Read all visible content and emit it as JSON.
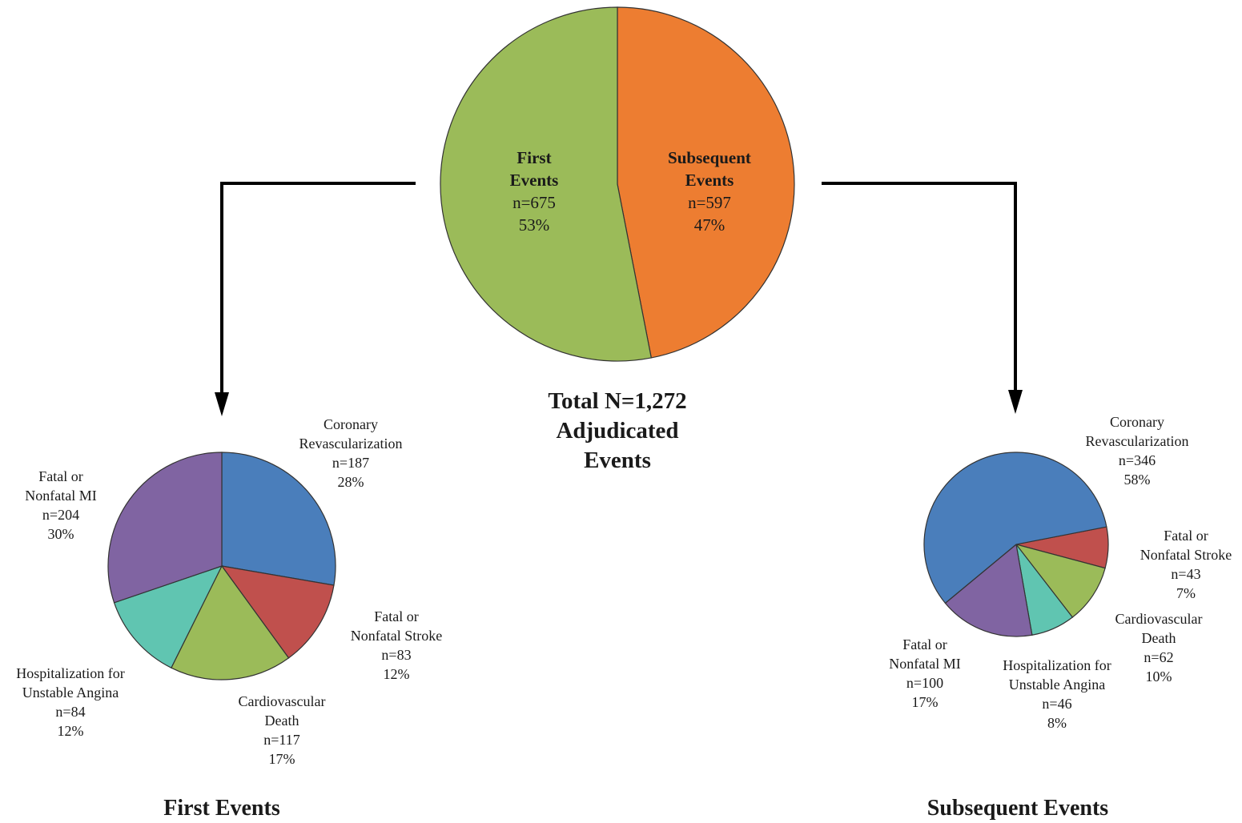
{
  "colors": {
    "first_events": "#9bbb59",
    "subsequent_events": "#ed7d31",
    "coronary_revascularization": "#4a7ebb",
    "fatal_or_nonfatal_stroke": "#c0504d",
    "cardiovascular_death": "#9bbb59",
    "hospitalization_unstable_angina": "#60c5b1",
    "fatal_or_nonfatal_mi": "#8064a2",
    "arrow": "#000000"
  },
  "total_label": {
    "line1": "Total N=1,272",
    "line2": "Adjudicated",
    "line3": "Events"
  },
  "chart_data": [
    {
      "type": "pie",
      "name": "total",
      "title": "",
      "slices": [
        {
          "label_lines": [
            "Subsequent",
            "Events"
          ],
          "n": "n=597",
          "pct": "47%",
          "value": 597,
          "color_key": "subsequent_events"
        },
        {
          "label_lines": [
            "First",
            "Events"
          ],
          "n": "n=675",
          "pct": "53%",
          "value": 675,
          "color_key": "first_events"
        }
      ]
    },
    {
      "type": "pie",
      "name": "first",
      "title": "First Events",
      "slices": [
        {
          "label_lines": [
            "Coronary",
            "Revascularization"
          ],
          "n": "n=187",
          "pct": "28%",
          "value": 187,
          "color_key": "coronary_revascularization"
        },
        {
          "label_lines": [
            "Fatal or",
            "Nonfatal Stroke"
          ],
          "n": "n=83",
          "pct": "12%",
          "value": 83,
          "color_key": "fatal_or_nonfatal_stroke"
        },
        {
          "label_lines": [
            "Cardiovascular",
            "Death"
          ],
          "n": "n=117",
          "pct": "17%",
          "value": 117,
          "color_key": "cardiovascular_death"
        },
        {
          "label_lines": [
            "Hospitalization for",
            "Unstable Angina"
          ],
          "n": "n=84",
          "pct": "12%",
          "value": 84,
          "color_key": "hospitalization_unstable_angina"
        },
        {
          "label_lines": [
            "Fatal or",
            "Nonfatal MI"
          ],
          "n": "n=204",
          "pct": "30%",
          "value": 204,
          "color_key": "fatal_or_nonfatal_mi"
        }
      ]
    },
    {
      "type": "pie",
      "name": "subsequent",
      "title": "Subsequent Events",
      "slices": [
        {
          "label_lines": [
            "Fatal or",
            "Nonfatal Stroke"
          ],
          "n": "n=43",
          "pct": "7%",
          "value": 43,
          "color_key": "fatal_or_nonfatal_stroke"
        },
        {
          "label_lines": [
            "Cardiovascular",
            "Death"
          ],
          "n": "n=62",
          "pct": "10%",
          "value": 62,
          "color_key": "cardiovascular_death"
        },
        {
          "label_lines": [
            "Hospitalization for",
            "Unstable Angina"
          ],
          "n": "n=46",
          "pct": "8%",
          "value": 46,
          "color_key": "hospitalization_unstable_angina"
        },
        {
          "label_lines": [
            "Fatal or",
            "Nonfatal MI"
          ],
          "n": "n=100",
          "pct": "17%",
          "value": 100,
          "color_key": "fatal_or_nonfatal_mi"
        },
        {
          "label_lines": [
            "Coronary",
            "Revascularization"
          ],
          "n": "n=346",
          "pct": "58%",
          "value": 346,
          "color_key": "coronary_revascularization"
        }
      ]
    }
  ]
}
